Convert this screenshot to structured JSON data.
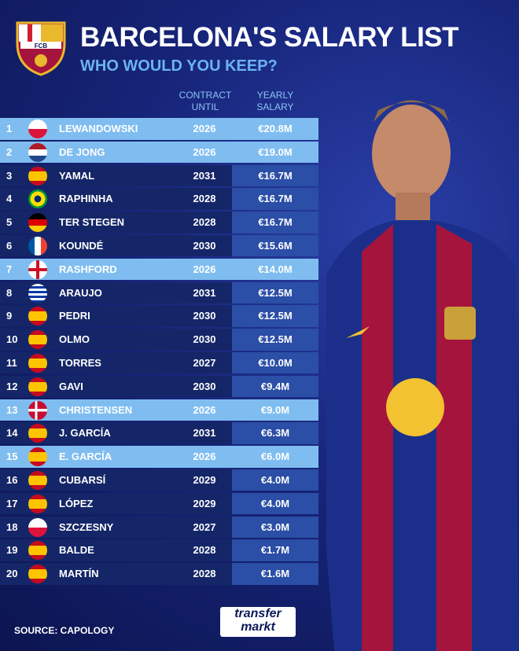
{
  "header": {
    "title": "BARCELONA'S SALARY LIST",
    "subtitle": "WHO WOULD YOU KEEP?",
    "logo": "FCB"
  },
  "table": {
    "columns": [
      "CONTRACT UNTIL",
      "YEARLY SALARY"
    ],
    "rows": [
      [
        1,
        "LEWANDOWSKI",
        2026,
        "€20.8M"
      ],
      [
        2,
        "DE JONG",
        2026,
        "€19.0M"
      ],
      [
        3,
        "YAMAL",
        2031,
        "€16.7M"
      ],
      [
        4,
        "RAPHINHA",
        2028,
        "€16.7M"
      ],
      [
        5,
        "TER STEGEN",
        2028,
        "€16.7M"
      ],
      [
        6,
        "KOUNDÉ",
        2030,
        "€15.6M"
      ],
      [
        7,
        "RASHFORD",
        2026,
        "€14.0M"
      ],
      [
        8,
        "ARAUJO",
        2031,
        "€12.5M"
      ],
      [
        9,
        "PEDRI",
        2030,
        "€12.5M"
      ],
      [
        10,
        "OLMO",
        2030,
        "€12.5M"
      ],
      [
        11,
        "TORRES",
        2027,
        "€10.0M"
      ],
      [
        12,
        "GAVI",
        2030,
        "€9.4M"
      ],
      [
        13,
        "CHRISTENSEN",
        2026,
        "€9.0M"
      ],
      [
        14,
        "J. GARCÍA",
        2031,
        "€6.3M"
      ],
      [
        15,
        "E. GARCÍA",
        2026,
        "€6.0M"
      ],
      [
        16,
        "CUBARSÍ",
        2029,
        "€4.0M"
      ],
      [
        17,
        "LÓPEZ",
        2029,
        "€4.0M"
      ],
      [
        18,
        "SZCZESNY",
        2027,
        "€3.0M"
      ],
      [
        19,
        "BALDE",
        2028,
        "€1.7M"
      ],
      [
        20,
        "MARTÍN",
        2028,
        "€1.6M"
      ]
    ]
  },
  "footer": {
    "source": "SOURCE: CAPOLOGY",
    "brand": [
      "transfer",
      "markt"
    ]
  }
}
